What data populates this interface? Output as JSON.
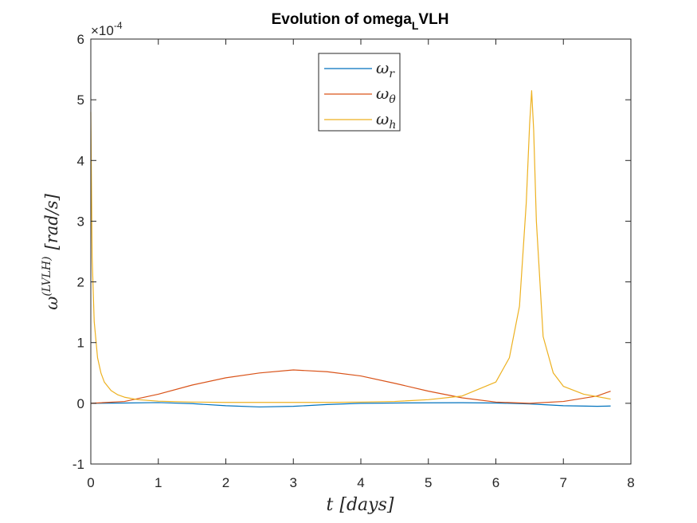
{
  "chart_data": {
    "type": "line",
    "title": {
      "prefix": "Evolution of omega",
      "subscript": "L",
      "suffix": "VLH"
    },
    "xlabel": {
      "var": "t",
      "unit": "[days]"
    },
    "ylabel": {
      "base": "ω",
      "superscript": "(LVLH)",
      "unit": "[rad/s]"
    },
    "xlim": [
      0,
      8
    ],
    "ylim": [
      -1,
      6
    ],
    "y_exponent": {
      "times": "×10",
      "power": "-4"
    },
    "xticks": [
      "0",
      "1",
      "2",
      "3",
      "4",
      "5",
      "6",
      "7",
      "8"
    ],
    "yticks": [
      "-1",
      "0",
      "1",
      "2",
      "3",
      "4",
      "5",
      "6"
    ],
    "grid": false,
    "legend_position": "top-center",
    "series": [
      {
        "name": {
          "base": "ω",
          "sub": "r"
        },
        "color": "#0072BD",
        "x": [
          0,
          0.5,
          1,
          1.5,
          2,
          2.5,
          3,
          3.5,
          4,
          4.5,
          5,
          5.5,
          6,
          6.5,
          7,
          7.5,
          7.7
        ],
        "y": [
          0,
          0.005,
          0.012,
          -0.005,
          -0.04,
          -0.06,
          -0.05,
          -0.02,
          0,
          0.005,
          0.008,
          0.01,
          0.005,
          -0.01,
          -0.04,
          -0.05,
          -0.045
        ]
      },
      {
        "name": {
          "base": "ω",
          "sub": "θ"
        },
        "color": "#D95319",
        "x": [
          0,
          0.5,
          1,
          1.5,
          2,
          2.5,
          3,
          3.5,
          4,
          4.5,
          5,
          5.5,
          6,
          6.5,
          7,
          7.5,
          7.7
        ],
        "y": [
          0,
          0.03,
          0.15,
          0.3,
          0.42,
          0.5,
          0.55,
          0.52,
          0.45,
          0.33,
          0.2,
          0.09,
          0.02,
          0,
          0.03,
          0.12,
          0.2
        ]
      },
      {
        "name": {
          "base": "ω",
          "sub": "h"
        },
        "color": "#EDB120",
        "x": [
          0,
          0.02,
          0.05,
          0.1,
          0.15,
          0.2,
          0.3,
          0.4,
          0.5,
          0.7,
          1,
          1.5,
          2,
          2.5,
          3,
          3.5,
          4,
          4.5,
          5,
          5.5,
          6,
          6.2,
          6.35,
          6.45,
          6.5,
          6.53,
          6.56,
          6.6,
          6.7,
          6.85,
          7,
          7.3,
          7.7
        ],
        "y": [
          4.8,
          2.4,
          1.35,
          0.75,
          0.5,
          0.35,
          0.21,
          0.14,
          0.1,
          0.06,
          0.035,
          0.02,
          0.015,
          0.015,
          0.015,
          0.015,
          0.02,
          0.03,
          0.06,
          0.12,
          0.35,
          0.75,
          1.6,
          3.3,
          4.6,
          5.15,
          4.5,
          3.0,
          1.1,
          0.5,
          0.28,
          0.15,
          0.07
        ]
      }
    ]
  }
}
